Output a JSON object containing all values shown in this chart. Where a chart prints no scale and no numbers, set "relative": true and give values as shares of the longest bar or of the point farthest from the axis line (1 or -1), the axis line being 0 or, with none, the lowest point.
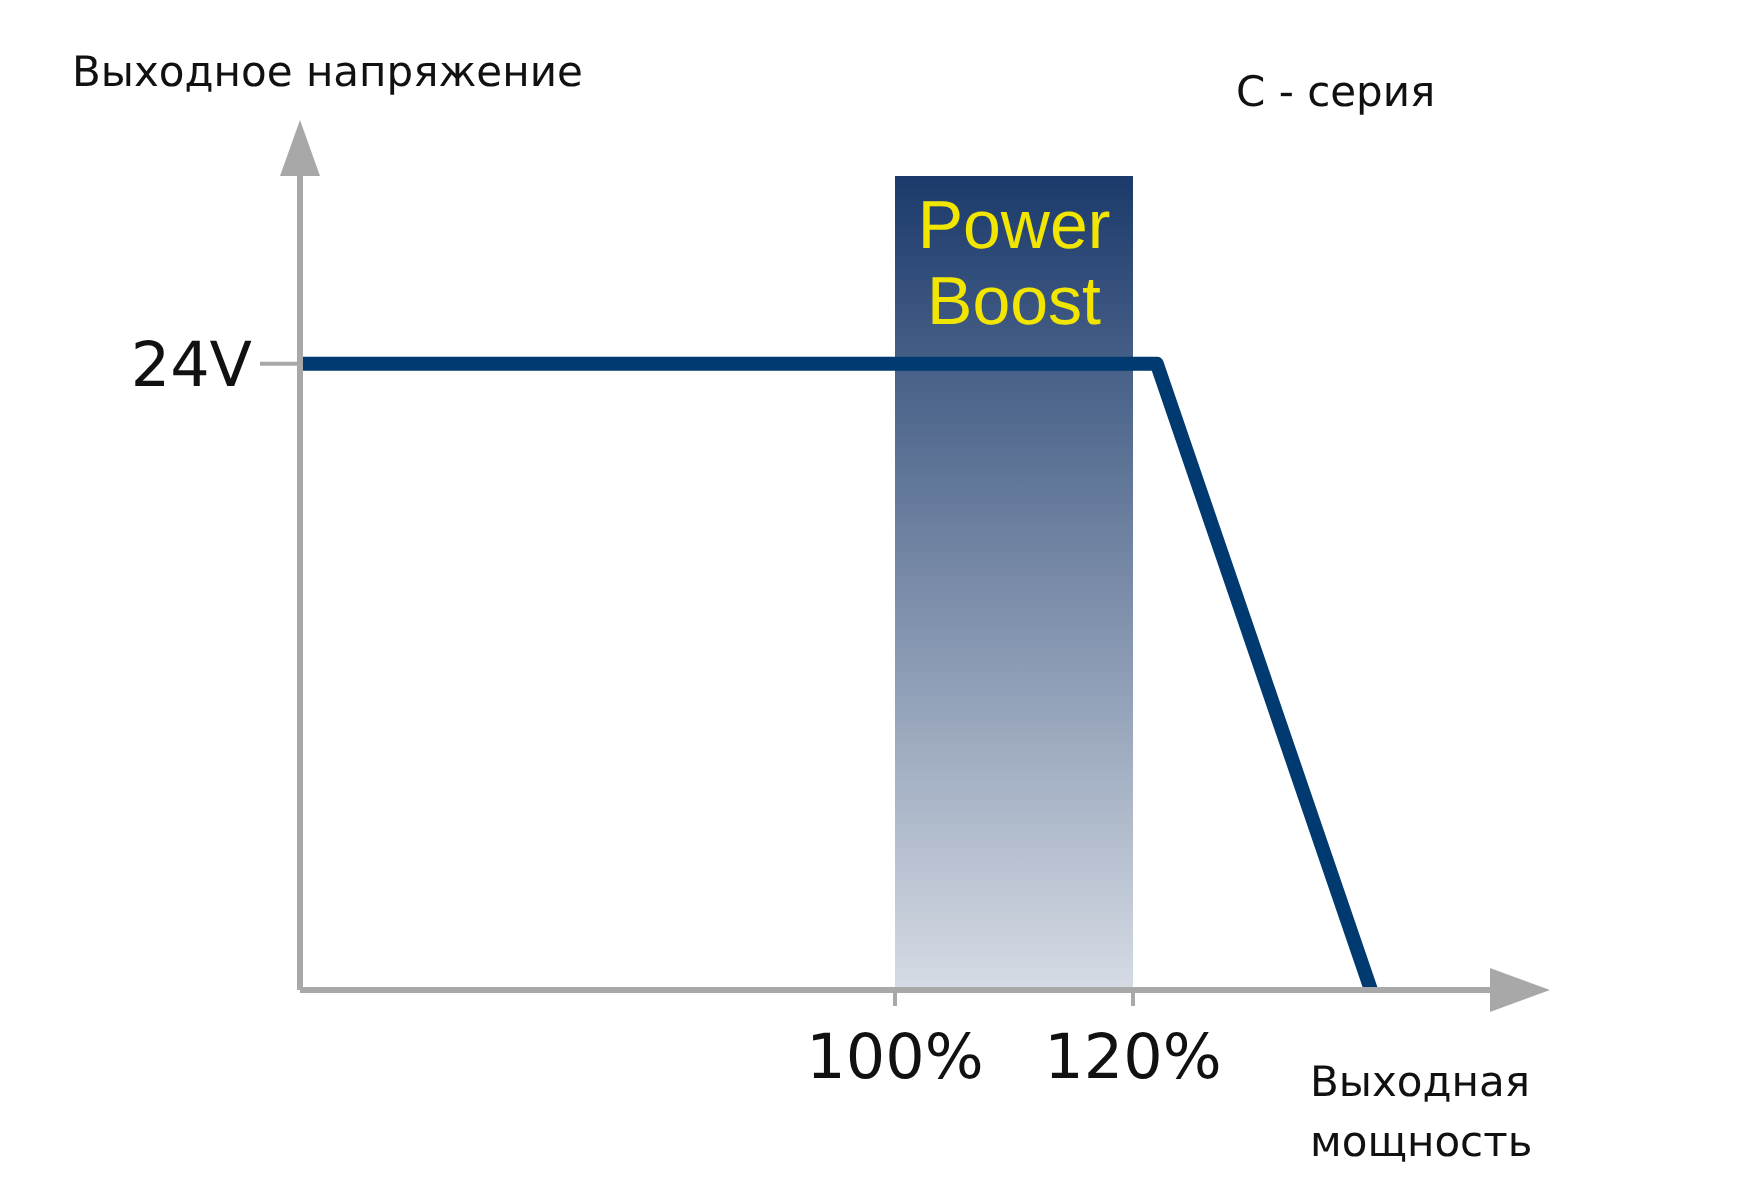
{
  "chart_data": {
    "type": "line",
    "subtitle": "С - серия",
    "xlabel": "Выходная мощность",
    "relative": true,
    "x": [
      50,
      122,
      140
    ],
    "series": [
      {
        "color": "#003a70",
        "values": [
          1,
          1,
          0
        ]
      }
    ],
    "xlim": [
      50,
      150
    ],
    "xticks": [
      {
        "value": 100,
        "label": "100%"
      },
      {
        "value": 120,
        "label": "120%"
      }
    ],
    "annotations": [
      "Выходное напряжение",
      "24V"
    ],
    "bands": [
      {
        "axis": "x",
        "from": 100,
        "to": 120,
        "label": "Power Boost",
        "color": "#1b3a6b"
      }
    ],
    "marker": "none",
    "line_style": "solid"
  }
}
